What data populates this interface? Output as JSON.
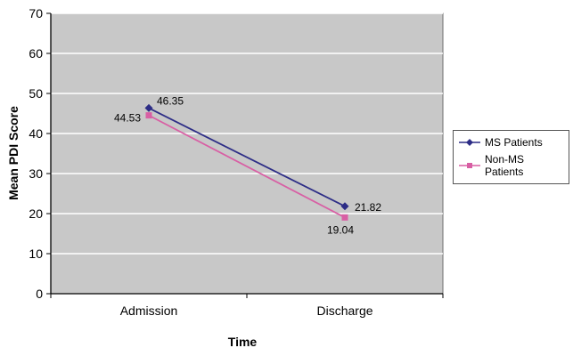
{
  "chart_data": {
    "type": "line",
    "title": "",
    "xlabel": "Time",
    "ylabel": "Mean PDI Score",
    "ylim": [
      0,
      70
    ],
    "ytick_step": 10,
    "ytick_labels": [
      "0",
      "10",
      "20",
      "30",
      "40",
      "50",
      "60",
      "70"
    ],
    "categories": [
      "Admission",
      "Discharge"
    ],
    "series": [
      {
        "name": "MS Patients",
        "values": [
          46.35,
          21.82
        ],
        "color": "#2d2d86",
        "marker": "diamond",
        "labels": [
          {
            "text": "46.35",
            "pos": "right-up"
          },
          {
            "text": "21.82",
            "pos": "right"
          }
        ]
      },
      {
        "name": "Non-MS Patients",
        "values": [
          44.53,
          19.04
        ],
        "color": "#d85fa4",
        "marker": "square",
        "labels": [
          {
            "text": "44.53",
            "pos": "left-down"
          },
          {
            "text": "19.04",
            "pos": "below"
          }
        ]
      }
    ],
    "grid": true,
    "legend_position": "right",
    "plot_bg": "#c8c8c8",
    "grid_color": "#ffffff"
  }
}
